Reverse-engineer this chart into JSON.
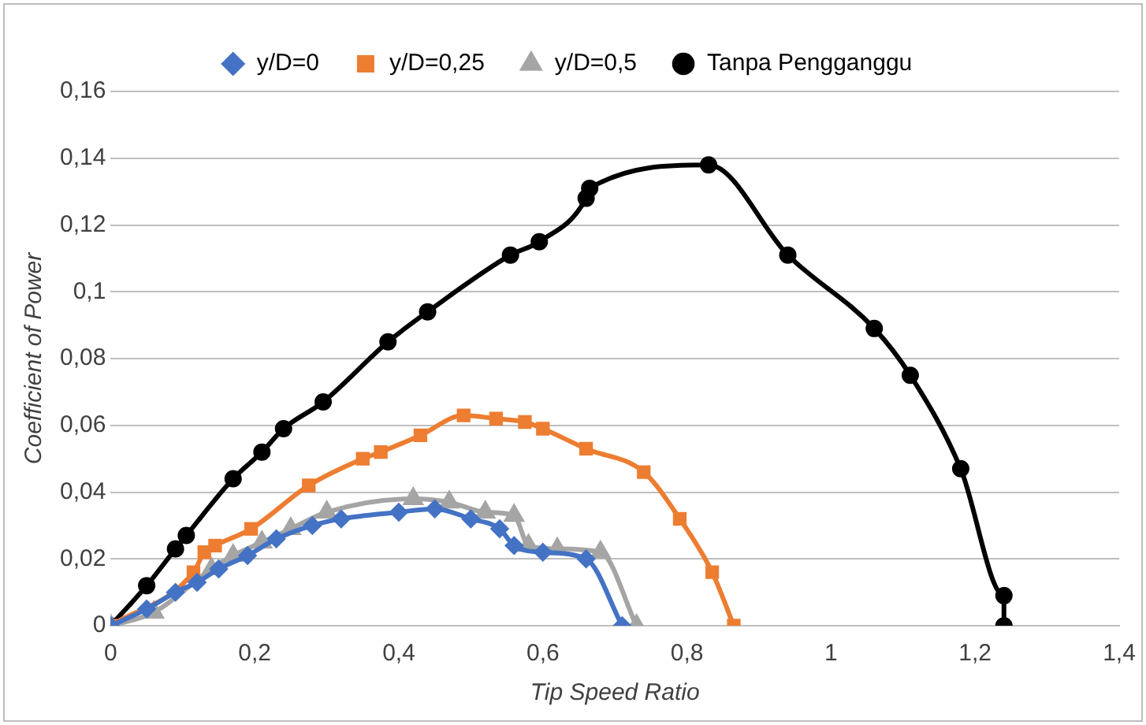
{
  "chart_data": {
    "type": "line",
    "xlabel": "Tip Speed Ratio",
    "ylabel": "Coefficient of Power",
    "legend": "top",
    "grid": "y",
    "xlim": [
      0,
      1.4
    ],
    "xticks": [
      0,
      {
        "value": 0.2,
        "label": "0,2"
      },
      {
        "value": 0.4,
        "label": "0,4"
      },
      {
        "value": 0.6,
        "label": "0,6"
      },
      {
        "value": 0.8,
        "label": "0,8"
      },
      1,
      {
        "value": 1.2,
        "label": "1,2"
      },
      {
        "value": 1.4,
        "label": "1,4"
      }
    ],
    "ylim": [
      0,
      0.16
    ],
    "yticks": [
      0,
      {
        "value": 0.02,
        "label": "0,02"
      },
      {
        "value": 0.04,
        "label": "0,04"
      },
      {
        "value": 0.06,
        "label": "0,06"
      },
      {
        "value": 0.08,
        "label": "0,08"
      },
      {
        "value": 0.1,
        "label": "0,1"
      },
      {
        "value": 0.12,
        "label": "0,12"
      },
      {
        "value": 0.14,
        "label": "0,14"
      },
      {
        "value": 0.16,
        "label": "0,16"
      }
    ],
    "series": [
      {
        "name": "y/D=0",
        "color": "#4472c4",
        "marker": "diamond",
        "x": [
          0,
          0.05,
          0.09,
          0.12,
          0.15,
          0.19,
          0.23,
          0.28,
          0.32,
          0.4,
          0.45,
          0.5,
          0.54,
          0.56,
          0.6,
          0.66,
          0.71
        ],
        "values": [
          0,
          0.005,
          0.01,
          0.013,
          0.017,
          0.021,
          0.026,
          0.03,
          0.032,
          0.034,
          0.035,
          0.032,
          0.029,
          0.024,
          0.022,
          0.02,
          0
        ]
      },
      {
        "name": "y/D=0,25",
        "color": "#ed7d31",
        "marker": "square",
        "x": [
          0,
          0.05,
          0.115,
          0.13,
          0.145,
          0.195,
          0.275,
          0.35,
          0.375,
          0.43,
          0.49,
          0.535,
          0.575,
          0.6,
          0.66,
          0.74,
          0.79,
          0.835,
          0.865
        ],
        "values": [
          0,
          null,
          0.016,
          0.022,
          0.024,
          0.029,
          0.042,
          0.05,
          0.052,
          0.057,
          0.063,
          0.062,
          0.061,
          0.059,
          0.053,
          0.046,
          0.032,
          0.016,
          0
        ]
      },
      {
        "name": "y/D=0,5",
        "color": "#a5a5a5",
        "marker": "triangle",
        "x": [
          0,
          0.06,
          0.1,
          0.14,
          0.17,
          0.21,
          0.25,
          0.3,
          0.42,
          0.47,
          0.52,
          0.56,
          0.58,
          0.62,
          0.68,
          0.73
        ],
        "values": [
          0,
          0.004,
          null,
          0.017,
          0.021,
          0.025,
          0.029,
          0.034,
          0.038,
          0.037,
          0.034,
          0.033,
          0.024,
          0.023,
          0.022,
          0
        ]
      },
      {
        "name": "Tanpa Pengganggu",
        "color": "#000000",
        "marker": "circle",
        "x": [
          0,
          0.05,
          0.09,
          0.105,
          0.17,
          0.21,
          0.24,
          0.295,
          0.385,
          0.44,
          0.555,
          0.595,
          0.66,
          0.665,
          0.83,
          0.94,
          1.06,
          1.11,
          1.18,
          1.24,
          1.24
        ],
        "values": [
          0,
          0.012,
          0.023,
          0.027,
          0.044,
          0.052,
          0.059,
          0.067,
          0.085,
          0.094,
          0.111,
          0.115,
          0.128,
          0.131,
          0.138,
          0.111,
          0.089,
          0.075,
          0.047,
          0.009,
          0
        ]
      }
    ]
  }
}
